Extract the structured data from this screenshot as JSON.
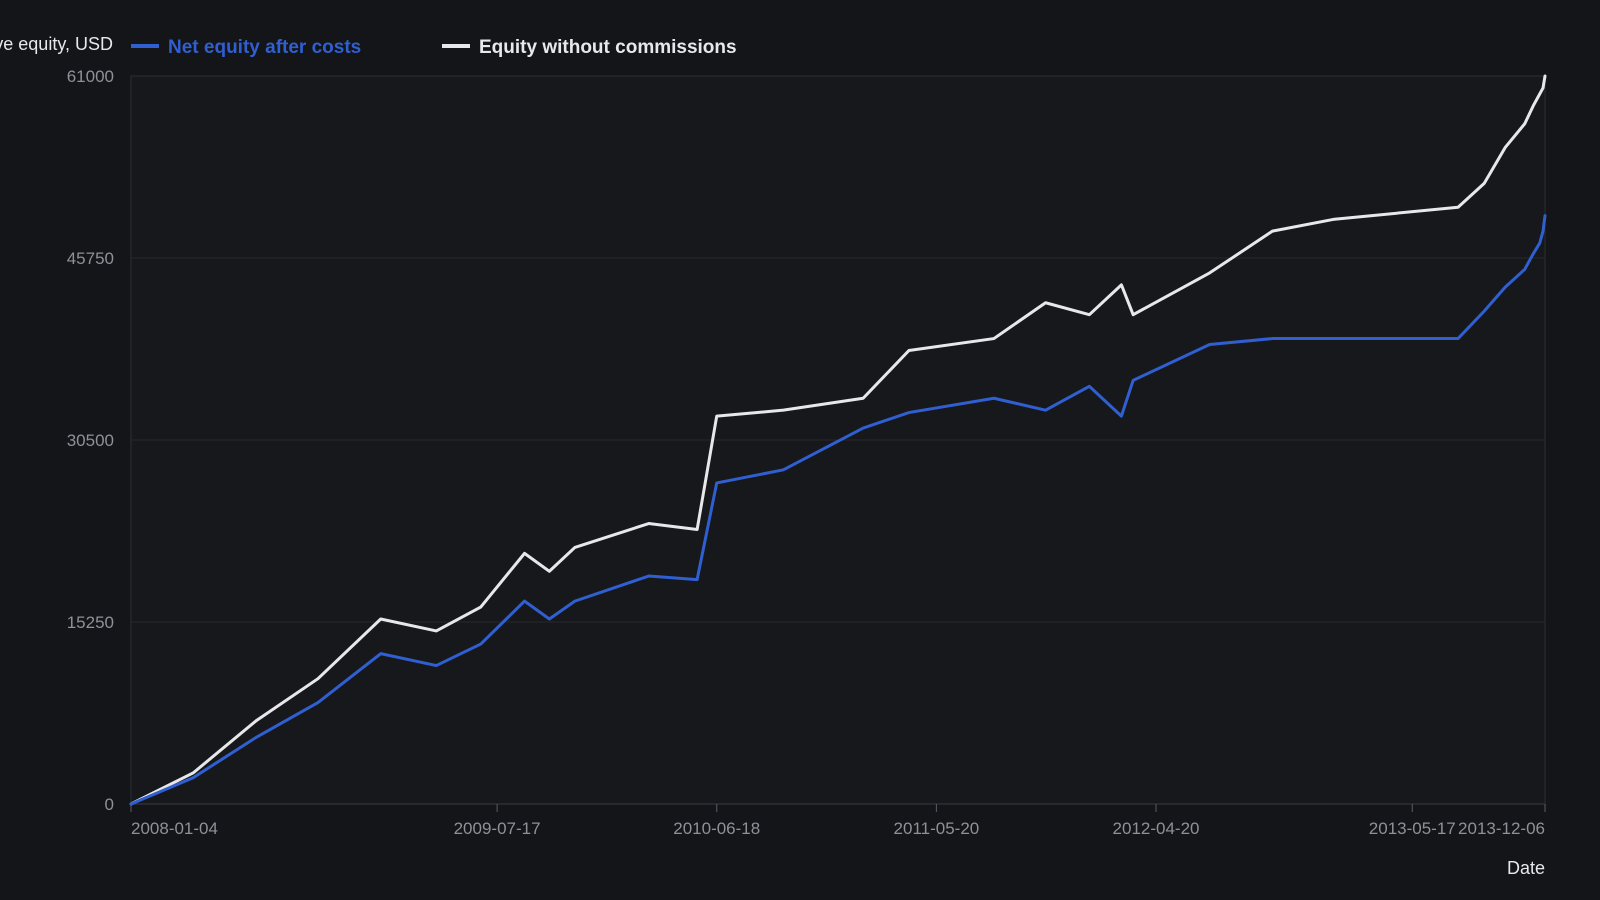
{
  "chart_data": {
    "type": "line",
    "ylabel": "Cumulative equity, USD",
    "xlabel": "Date",
    "ylim": [
      0,
      61000
    ],
    "xlim": [
      "2008-01-04",
      "2013-12-06"
    ],
    "yticks": [
      0,
      15250,
      30500,
      45750,
      61000
    ],
    "xticks": [
      "2008-01-04",
      "2009-07-17",
      "2010-06-18",
      "2011-05-20",
      "2012-04-20",
      "2013-05-17",
      "2013-12-06"
    ],
    "grid": "horizontal",
    "legend_position": "top-left",
    "background": "#141518",
    "plot_background": "#17181c",
    "series": [
      {
        "name": "Net equity after costs",
        "color": "#2f5fd0",
        "points": [
          [
            "2008-01-04",
            0
          ],
          [
            "2008-04-08",
            2200
          ],
          [
            "2008-07-14",
            5600
          ],
          [
            "2008-10-16",
            8500
          ],
          [
            "2009-01-20",
            12600
          ],
          [
            "2009-04-15",
            11600
          ],
          [
            "2009-06-22",
            13400
          ],
          [
            "2009-08-28",
            17000
          ],
          [
            "2009-10-05",
            15500
          ],
          [
            "2009-11-13",
            17000
          ],
          [
            "2010-03-06",
            19100
          ],
          [
            "2010-05-19",
            18800
          ],
          [
            "2010-06-18",
            26900
          ],
          [
            "2010-09-28",
            28000
          ],
          [
            "2011-01-28",
            31500
          ],
          [
            "2011-04-08",
            32800
          ],
          [
            "2011-08-16",
            34000
          ],
          [
            "2011-11-03",
            33000
          ],
          [
            "2012-01-09",
            35000
          ],
          [
            "2012-02-27",
            32500
          ],
          [
            "2012-03-16",
            35500
          ],
          [
            "2012-07-11",
            38500
          ],
          [
            "2012-10-15",
            39000
          ],
          [
            "2013-01-18",
            39000
          ],
          [
            "2013-07-26",
            39000
          ],
          [
            "2013-09-04",
            41300
          ],
          [
            "2013-10-06",
            43300
          ],
          [
            "2013-11-05",
            44800
          ],
          [
            "2013-11-18",
            46100
          ],
          [
            "2013-11-28",
            47000
          ],
          [
            "2013-12-03",
            48000
          ],
          [
            "2013-12-06",
            49300
          ]
        ]
      },
      {
        "name": "Equity without commissions",
        "color": "#e8e8ea",
        "points": [
          [
            "2008-01-04",
            0
          ],
          [
            "2008-04-08",
            2600
          ],
          [
            "2008-07-14",
            7000
          ],
          [
            "2008-10-16",
            10500
          ],
          [
            "2009-01-20",
            15500
          ],
          [
            "2009-04-15",
            14500
          ],
          [
            "2009-06-22",
            16500
          ],
          [
            "2009-08-28",
            21000
          ],
          [
            "2009-10-05",
            19500
          ],
          [
            "2009-11-13",
            21500
          ],
          [
            "2010-03-06",
            23500
          ],
          [
            "2010-05-19",
            23000
          ],
          [
            "2010-06-18",
            32500
          ],
          [
            "2010-09-28",
            33000
          ],
          [
            "2011-01-28",
            34000
          ],
          [
            "2011-04-08",
            38000
          ],
          [
            "2011-08-16",
            39000
          ],
          [
            "2011-11-03",
            42000
          ],
          [
            "2012-01-09",
            41000
          ],
          [
            "2012-02-27",
            43500
          ],
          [
            "2012-03-16",
            41000
          ],
          [
            "2012-07-11",
            44500
          ],
          [
            "2012-10-15",
            48000
          ],
          [
            "2013-01-18",
            49000
          ],
          [
            "2013-07-26",
            50000
          ],
          [
            "2013-09-04",
            52000
          ],
          [
            "2013-10-06",
            55000
          ],
          [
            "2013-11-05",
            57000
          ],
          [
            "2013-11-18",
            58500
          ],
          [
            "2013-11-28",
            59500
          ],
          [
            "2013-12-03",
            60000
          ],
          [
            "2013-12-06",
            61000
          ]
        ]
      }
    ]
  }
}
